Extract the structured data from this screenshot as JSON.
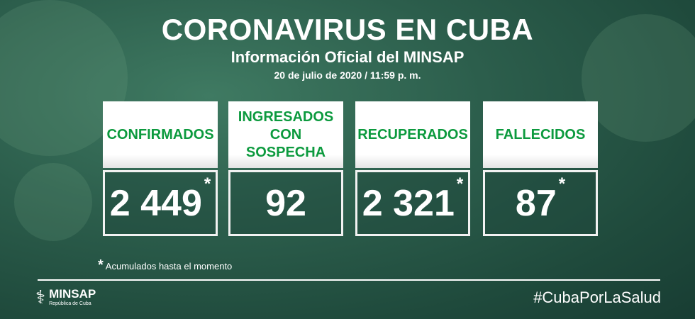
{
  "header": {
    "title": "CORONAVIRUS EN CUBA",
    "subtitle": "Información Oficial del MINSAP",
    "date": "20 de julio de 2020 / 11:59 p. m."
  },
  "cards": [
    {
      "label": "CONFIRMADOS",
      "value": "2 449",
      "asterisk": "*"
    },
    {
      "label": "INGRESADOS CON SOSPECHA",
      "value": "92",
      "asterisk": ""
    },
    {
      "label": "RECUPERADOS",
      "value": "2 321",
      "asterisk": "*"
    },
    {
      "label": "FALLECIDOS",
      "value": "87",
      "asterisk": "*"
    }
  ],
  "note": {
    "asterisk": "*",
    "text": "Acumulados hasta el momento"
  },
  "footer": {
    "logo_name": "MINSAP",
    "logo_sub": "República de Cuba",
    "hashtag": "#CubaPorLaSalud"
  },
  "colors": {
    "label_green": "#0c9a3e",
    "background": "#2c5e4c"
  }
}
